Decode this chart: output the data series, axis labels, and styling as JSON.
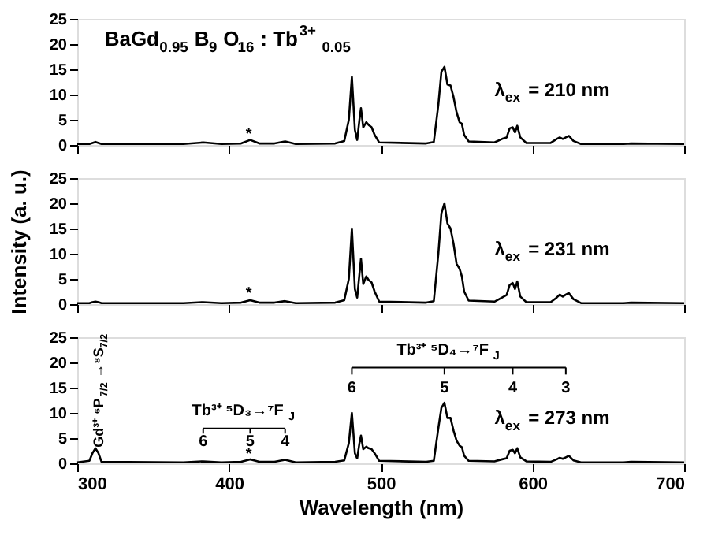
{
  "chart_data": [
    {
      "type": "line",
      "xlim": [
        300,
        700
      ],
      "xticks": [
        300,
        400,
        500,
        600,
        700
      ],
      "ylim": [
        0,
        25
      ],
      "yticks": [
        0,
        5,
        10,
        15,
        20,
        25
      ],
      "tick_labels": "y",
      "grid": false,
      "line_style": "solid",
      "x": [
        300,
        308,
        310,
        312,
        314,
        316,
        370,
        383,
        395,
        408,
        414,
        420,
        430,
        437,
        444,
        470,
        476,
        479,
        481,
        483,
        484.5,
        486,
        487,
        488.5,
        490.5,
        492,
        494,
        496,
        499,
        530,
        535,
        538,
        540,
        542,
        544,
        546,
        548,
        550,
        552,
        553.5,
        555,
        558,
        575,
        580,
        583,
        585,
        587,
        588.5,
        590,
        592,
        596,
        612,
        616,
        618,
        620,
        622,
        624,
        627,
        632,
        660,
        665,
        700
      ],
      "series": [
        {
          "color": "#000000",
          "values": [
            0.2,
            0.2,
            0.4,
            0.6,
            0.4,
            0.2,
            0.2,
            0.5,
            0.2,
            0.3,
            1.0,
            0.3,
            0.3,
            0.7,
            0.2,
            0.3,
            0.8,
            5,
            13.5,
            3,
            1,
            5,
            7.3,
            3.5,
            4.5,
            4,
            3.5,
            2,
            0.5,
            0.3,
            0.6,
            8,
            14.5,
            15.5,
            12,
            11.8,
            9.5,
            6.5,
            4.5,
            4.2,
            2,
            0.7,
            0.5,
            1.2,
            1.5,
            3.3,
            3.5,
            2.5,
            3.8,
            1.5,
            0.4,
            0.4,
            1.2,
            1.5,
            1.2,
            1.5,
            1.8,
            0.8,
            0.2,
            0.2,
            0.3,
            0.2
          ]
        }
      ],
      "annotations": [
        "BaGd$_{0.95}$B$_{9}$O$_{16}$: Tb$^{3+}$$_{0.05}$",
        "λ$_{ex}$ = 210 nm",
        "*"
      ]
    },
    {
      "type": "line",
      "xlim": [
        300,
        700
      ],
      "xticks": [
        300,
        400,
        500,
        600,
        700
      ],
      "ylim": [
        0,
        25
      ],
      "yticks": [
        0,
        5,
        10,
        15,
        20,
        25
      ],
      "tick_labels": "y",
      "grid": false,
      "line_style": "solid",
      "ylabel": "Intensity (a. u.)",
      "x": [
        300,
        308,
        310,
        312,
        314,
        316,
        370,
        383,
        395,
        408,
        414,
        420,
        430,
        437,
        444,
        470,
        476,
        479,
        481,
        483,
        484.5,
        486,
        487,
        488.5,
        490.5,
        492,
        494,
        496,
        499,
        530,
        535,
        538,
        540,
        542,
        544,
        546,
        548,
        550,
        552,
        553.5,
        555,
        558,
        575,
        580,
        583,
        585,
        587,
        588.5,
        590,
        592,
        596,
        612,
        616,
        618,
        620,
        622,
        624,
        627,
        632,
        660,
        665,
        700
      ],
      "series": [
        {
          "color": "#000000",
          "values": [
            0.2,
            0.2,
            0.4,
            0.5,
            0.4,
            0.2,
            0.2,
            0.4,
            0.2,
            0.3,
            0.8,
            0.3,
            0.3,
            0.6,
            0.2,
            0.3,
            0.8,
            5,
            15,
            3,
            1.3,
            6,
            9,
            4,
            5.5,
            4.8,
            4.3,
            2.5,
            0.5,
            0.3,
            0.6,
            10,
            18,
            20,
            16,
            15,
            12,
            8,
            7,
            5.5,
            2.5,
            0.7,
            0.5,
            1.3,
            1.8,
            3.8,
            4.2,
            3,
            4.5,
            1.5,
            0.4,
            0.4,
            1.3,
            1.9,
            1.5,
            1.9,
            2.2,
            1,
            0.2,
            0.2,
            0.3,
            0.2
          ]
        }
      ],
      "annotations": [
        "λ$_{ex}$ = 231 nm",
        "*"
      ]
    },
    {
      "type": "line",
      "xlim": [
        300,
        700
      ],
      "xticks": [
        300,
        400,
        500,
        600,
        700
      ],
      "ylim": [
        0,
        25
      ],
      "yticks": [
        0,
        5,
        10,
        15,
        20,
        25
      ],
      "grid": false,
      "line_style": "solid",
      "xlabel": "Wavelength (nm)",
      "x": [
        300,
        308,
        310,
        312,
        314,
        316,
        370,
        383,
        395,
        408,
        414,
        420,
        430,
        437,
        444,
        470,
        476,
        479,
        481,
        483,
        484.5,
        486,
        487,
        488.5,
        490.5,
        492,
        494,
        496,
        499,
        530,
        535,
        538,
        540,
        542,
        544,
        546,
        548,
        550,
        552,
        553.5,
        555,
        558,
        575,
        580,
        583,
        585,
        587,
        588.5,
        590,
        592,
        596,
        612,
        616,
        618,
        620,
        622,
        624,
        627,
        632,
        660,
        665,
        700
      ],
      "series": [
        {
          "color": "#000000",
          "values": [
            0.2,
            0.5,
            2,
            3,
            2,
            0.3,
            0.2,
            0.4,
            0.2,
            0.3,
            0.8,
            0.3,
            0.3,
            0.7,
            0.2,
            0.3,
            0.6,
            4,
            10,
            2,
            1,
            4,
            5.5,
            2.8,
            3.3,
            3,
            2.8,
            2,
            0.5,
            0.3,
            0.5,
            7,
            11,
            12,
            9,
            9,
            6.5,
            4.5,
            3.5,
            3.2,
            1.5,
            0.5,
            0.4,
            0.8,
            1,
            2.5,
            2.7,
            2,
            3,
            1.2,
            0.4,
            0.3,
            0.8,
            1.1,
            0.9,
            1.2,
            1.5,
            0.6,
            0.2,
            0.2,
            0.3,
            0.2
          ]
        }
      ],
      "annotations": [
        "λ$_{ex}$ = 273 nm",
        "*",
        "Gd³⁺ ⁶P$_{7/2}$→⁸S$_{7/2}$",
        "Tb³⁺ ⁵D₃→⁷F$_{J}$",
        "6",
        "5",
        "4",
        "Tb³⁺ ⁵D₄→⁷F$_{J}$",
        "6",
        "5",
        "4",
        "3"
      ]
    }
  ]
}
